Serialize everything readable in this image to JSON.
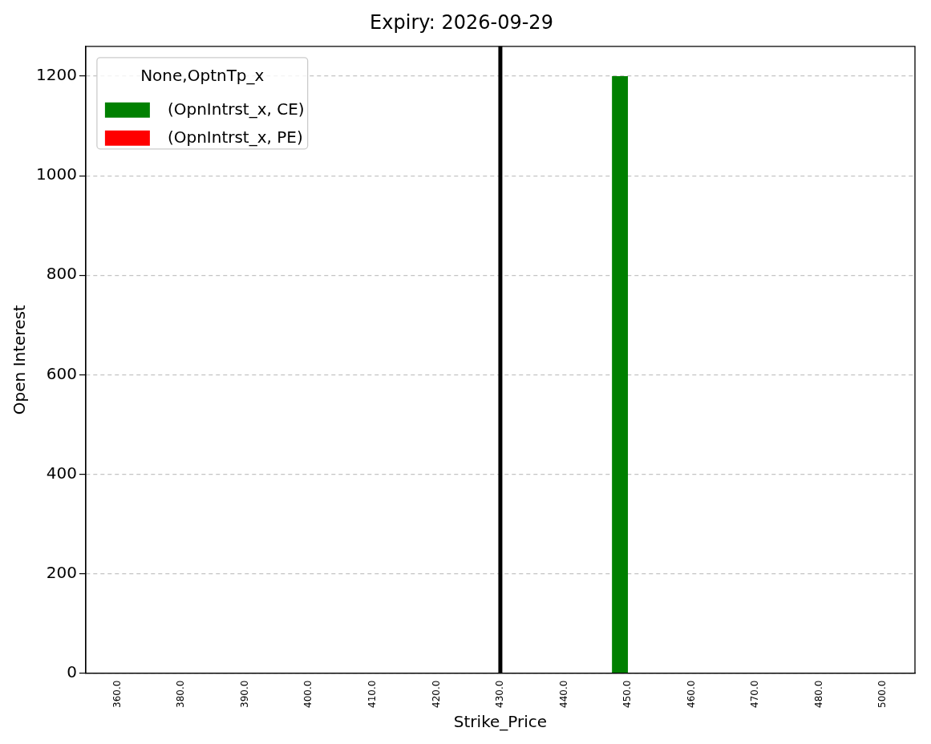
{
  "chart_data": {
    "type": "bar",
    "title": "Expiry: 2026-09-29",
    "xlabel": "Strike_Price",
    "ylabel": "Open Interest",
    "legend_title": "None,OptnTp_x",
    "categories": [
      "360.0",
      "380.0",
      "390.0",
      "400.0",
      "410.0",
      "420.0",
      "430.0",
      "440.0",
      "450.0",
      "460.0",
      "470.0",
      "480.0",
      "500.0"
    ],
    "series": [
      {
        "name": "(OpnIntrst_x, CE)",
        "color": "#008000",
        "values": [
          0,
          0,
          0,
          0,
          0,
          0,
          0,
          0,
          1200,
          0,
          0,
          0,
          0
        ]
      },
      {
        "name": "(OpnIntrst_x, PE)",
        "color": "#ff0000",
        "values": [
          0,
          0,
          0,
          0,
          0,
          0,
          0,
          0,
          0,
          0,
          0,
          0,
          0
        ]
      }
    ],
    "ylim": [
      0,
      1260
    ],
    "yticks": [
      0,
      200,
      400,
      600,
      800,
      1000,
      1200
    ],
    "grid": "y",
    "legend": "top left",
    "ref_lines": [
      {
        "axis": "x",
        "value": "430.0",
        "color": "#000000"
      }
    ]
  }
}
